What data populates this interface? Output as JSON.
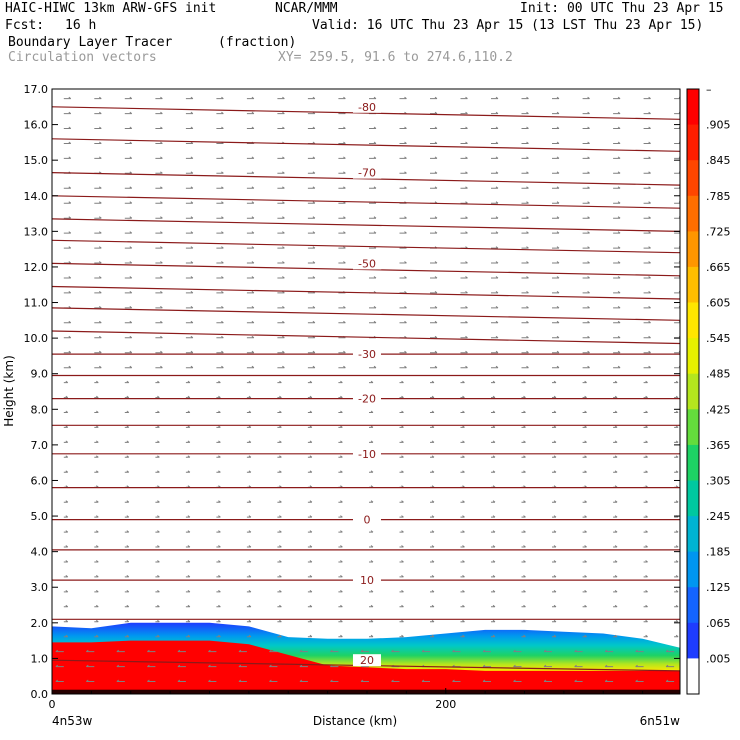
{
  "header": {
    "title": "HAIC-HIWC 13km ARW-GFS init",
    "org": "NCAR/MMM",
    "init": "Init: 00 UTC Thu 23 Apr 15",
    "fcst_label": "Fcst:",
    "fcst_value": "16 h",
    "valid": "Valid: 16 UTC Thu 23 Apr 15 (13 LST Thu 23 Apr 15)",
    "field": "Boundary Layer Tracer",
    "field_units": "(fraction)",
    "vectors": "Circulation vectors",
    "xy": "XY= 259.5, 91.6 to 274.6,110.2"
  },
  "chart_data": {
    "type": "heatmap",
    "xlabel": "Distance (km)",
    "ylabel": "Height (km)",
    "xlim": [
      0,
      319
    ],
    "ylim": [
      0,
      17
    ],
    "x_ticks": [
      {
        "value": 0,
        "label": "0"
      },
      {
        "value": 200,
        "label": "200"
      }
    ],
    "x_end_labels": {
      "left": "4n53w",
      "right": "6n51w"
    },
    "y_ticks": [
      "0.0",
      "1.0",
      "2.0",
      "3.0",
      "4.0",
      "5.0",
      "6.0",
      "7.0",
      "8.0",
      "9.0",
      "10.0",
      "11.0",
      "12.0",
      "13.0",
      "14.0",
      "15.0",
      "16.0",
      "17.0"
    ],
    "colorbar": {
      "labels": [
        "–",
        ".905",
        ".845",
        ".785",
        ".725",
        ".665",
        ".605",
        ".545",
        ".485",
        ".425",
        ".365",
        ".305",
        ".245",
        ".185",
        ".125",
        ".065",
        ".005"
      ],
      "colors": [
        "#ff0000",
        "#ff1e00",
        "#ff4600",
        "#ff6e00",
        "#ff9600",
        "#ffbe00",
        "#ffe600",
        "#e6f000",
        "#b4e61e",
        "#64dc3c",
        "#1ed264",
        "#00c8a0",
        "#00b4d2",
        "#0096f0",
        "#1464ff",
        "#1e3cff",
        "#ffffff"
      ]
    },
    "temperature_contours": [
      {
        "value": 20,
        "label": "20",
        "x_km": 160,
        "y_km": 0.95
      },
      {
        "value": 10,
        "label": "10",
        "x_km": 160,
        "y_km": 3.2
      },
      {
        "value": 0,
        "label": "0",
        "x_km": 160,
        "y_km": 4.9
      },
      {
        "value": -10,
        "label": "-10",
        "x_km": 160,
        "y_km": 6.75
      },
      {
        "value": -20,
        "label": "-20",
        "x_km": 160,
        "y_km": 8.3
      },
      {
        "value": -30,
        "label": "-30",
        "x_km": 160,
        "y_km": 9.55
      },
      {
        "value": -50,
        "label": "-50",
        "x_km": 160,
        "y_km": 12.1
      },
      {
        "value": -70,
        "label": "-70",
        "x_km": 160,
        "y_km": 14.65
      },
      {
        "value": -80,
        "label": "-80",
        "x_km": 160,
        "y_km": 16.5
      }
    ],
    "tracer_top_km": [
      [
        0,
        1.9
      ],
      [
        20,
        1.85
      ],
      [
        40,
        2.0
      ],
      [
        60,
        2.0
      ],
      [
        80,
        2.0
      ],
      [
        100,
        1.9
      ],
      [
        120,
        1.6
      ],
      [
        140,
        1.55
      ],
      [
        160,
        1.55
      ],
      [
        180,
        1.6
      ],
      [
        200,
        1.7
      ],
      [
        220,
        1.8
      ],
      [
        240,
        1.8
      ],
      [
        260,
        1.75
      ],
      [
        280,
        1.7
      ],
      [
        300,
        1.55
      ],
      [
        319,
        1.3
      ]
    ],
    "red_top_km": [
      [
        0,
        1.45
      ],
      [
        20,
        1.45
      ],
      [
        40,
        1.5
      ],
      [
        60,
        1.5
      ],
      [
        80,
        1.5
      ],
      [
        100,
        1.4
      ],
      [
        120,
        1.1
      ],
      [
        140,
        0.8
      ],
      [
        160,
        0.75
      ],
      [
        180,
        0.7
      ],
      [
        200,
        0.7
      ],
      [
        220,
        0.65
      ],
      [
        240,
        0.65
      ],
      [
        260,
        0.65
      ],
      [
        280,
        0.65
      ],
      [
        300,
        0.65
      ],
      [
        319,
        0.65
      ]
    ]
  }
}
